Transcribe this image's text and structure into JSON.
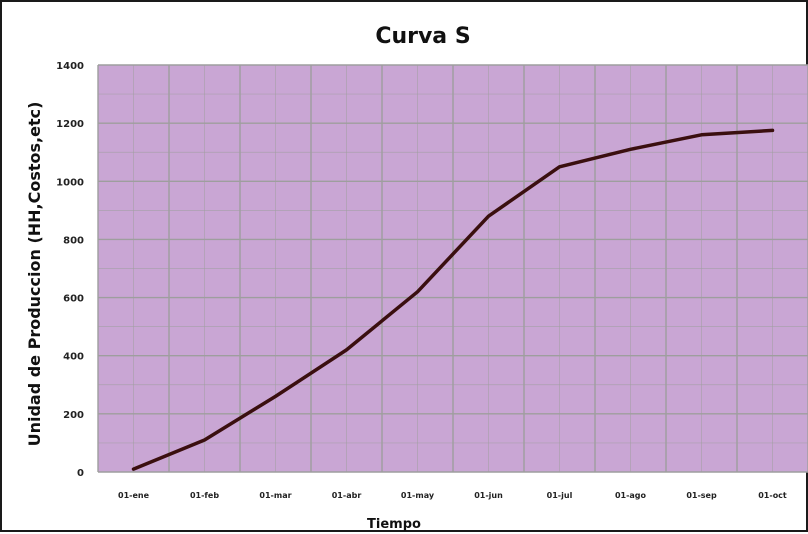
{
  "chart_data": {
    "type": "line",
    "title": "Curva S",
    "xlabel": "Tiempo",
    "ylabel": "Unidad de Produccion (HH,Costos,etc)",
    "categories": [
      "01-ene",
      "01-feb",
      "01-mar",
      "01-abr",
      "01-may",
      "01-jun",
      "01-jul",
      "01-ago",
      "01-sep",
      "01-oct"
    ],
    "yticks": [
      0,
      200,
      400,
      600,
      800,
      1000,
      1200,
      1400
    ],
    "ylim": [
      0,
      1400
    ],
    "grid": true,
    "legend": "none",
    "colors": {
      "plot_bg": "#c9a6d4",
      "grid": "#9e9e9e",
      "line": "#3a0f0f"
    },
    "series": [
      {
        "values": [
          10,
          110,
          260,
          420,
          620,
          880,
          1050,
          1110,
          1160,
          1175
        ]
      }
    ]
  }
}
